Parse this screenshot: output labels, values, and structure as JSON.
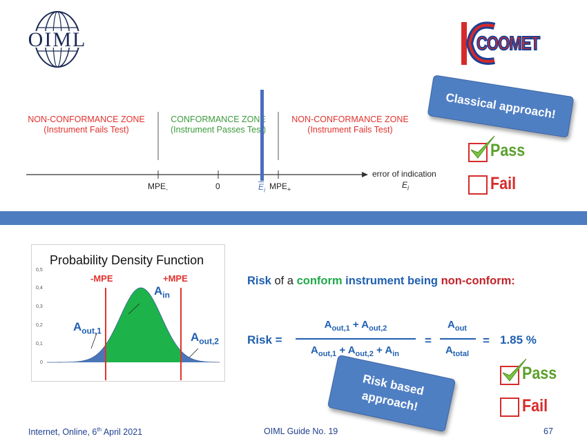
{
  "logos": {
    "oiml": "OIML",
    "coomet": "COOMET"
  },
  "classical": {
    "zones": [
      {
        "title": "NON-CONFORMANCE ZONE",
        "subtitle": "(Instrument Fails Test)"
      },
      {
        "title": "CONFORMANCE ZONE",
        "subtitle": "(Instrument Passes Test)"
      },
      {
        "title": "NON-CONFORMANCE ZONE",
        "subtitle": "(Instrument Fails Test)"
      }
    ],
    "axis_labels": {
      "mpe_minus": "MPE",
      "mpe_minus_sub": "-",
      "zero": "0",
      "ei_bar": "E",
      "ei_sub": "i",
      "mpe_plus": "MPE",
      "mpe_plus_sub": "+",
      "error_title": "error of indication",
      "error_symbol": "E",
      "error_symbol_sub": "i"
    },
    "badge": "Classical approach!",
    "pass_label": "Pass",
    "fail_label": "Fail",
    "pass_checked": true
  },
  "risk": {
    "pdf_title": "Probability Density Function",
    "y_ticks": [
      "0,5",
      "0,4",
      "0,3",
      "0,2",
      "0,1",
      "0"
    ],
    "mpe_minus": "-MPE",
    "mpe_plus": "+MPE",
    "a_in": "A",
    "a_in_sub": "in",
    "a_out1": "A",
    "a_out1_sub": "out,1",
    "a_out2": "A",
    "a_out2_sub": "out,2",
    "headline_risk": "Risk",
    "headline_of_a": " of a ",
    "headline_conform": "conform",
    "headline_instrument": " instrument being ",
    "headline_nonconform": "non-conform:",
    "formula_lhs": "Risk =",
    "equals": "=",
    "result": "1.85 %",
    "badge": "Risk based approach!",
    "pass_label": "Pass",
    "fail_label": "Fail",
    "pass_checked": true
  },
  "footer": {
    "left": "Internet, Online, 6",
    "left_sup": "th",
    "left_rest": " April 2021",
    "center": "OIML Guide No. 19",
    "page": "67"
  },
  "colors": {
    "band": "#4e7cc0",
    "badge": "#4f7fc3",
    "red": "#e0322d",
    "green_fill": "#1db34a",
    "blue_fill": "#4a76b8",
    "text_blue": "#1f5fb0"
  }
}
